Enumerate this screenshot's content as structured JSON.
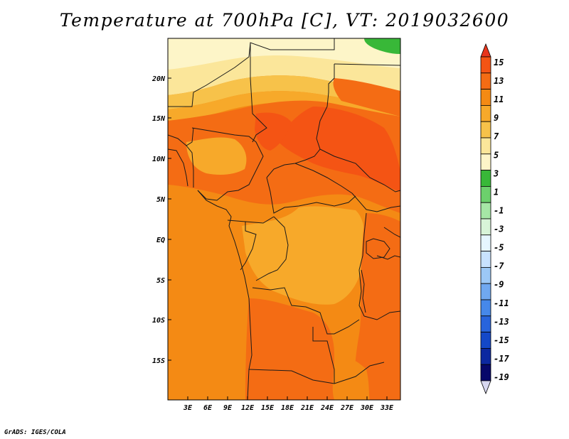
{
  "title": "Temperature at 700hPa [C], VT: 2019032600",
  "credit": "GrADS: IGES/COLA",
  "map": {
    "lat_ticks": [
      "20N",
      "15N",
      "10N",
      "5N",
      "EQ",
      "5S",
      "10S",
      "15S"
    ],
    "lon_ticks": [
      "3E",
      "6E",
      "9E",
      "12E",
      "15E",
      "18E",
      "21E",
      "24E",
      "27E",
      "30E",
      "33E"
    ],
    "colors": {
      "frame": "#000000",
      "border": "#1a1a1a",
      "background": "#ffffff"
    }
  },
  "colorbar": {
    "labels": [
      "15",
      "13",
      "11",
      "9",
      "7",
      "5",
      "3",
      "1",
      "-1",
      "-3",
      "-5",
      "-7",
      "-9",
      "-11",
      "-13",
      "-15",
      "-17",
      "-19"
    ],
    "colors": [
      "#e8351c",
      "#f45414",
      "#f46c14",
      "#f48a14",
      "#f7a92a",
      "#f7c24a",
      "#fbe69a",
      "#fdf5c8",
      "#38b838",
      "#6cd06c",
      "#a6e6a6",
      "#d8f4d8",
      "#e6f6ff",
      "#c8e2ff",
      "#9cc8f6",
      "#70a8f0",
      "#4688ea",
      "#2864dc",
      "#1448c8",
      "#0c28a0",
      "#07086a",
      "#d8d8f0"
    ]
  }
}
